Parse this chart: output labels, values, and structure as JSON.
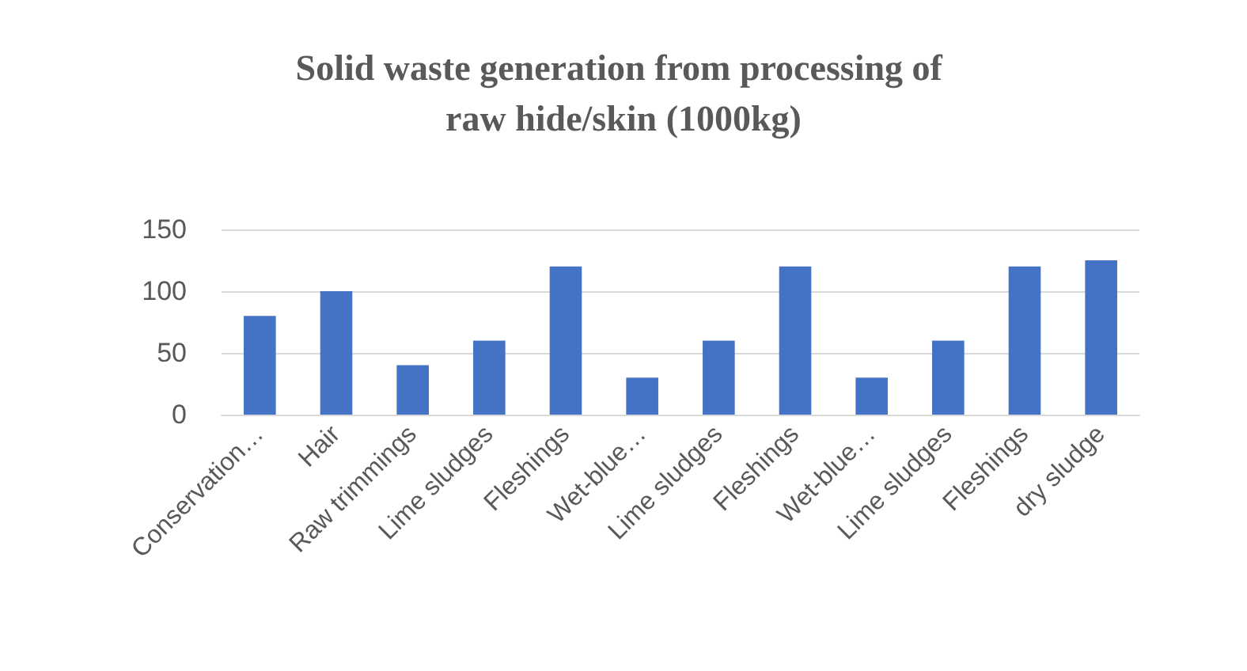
{
  "chart_data": {
    "type": "bar",
    "title": "Solid waste generation from processing of raw hide/skin (1000kg)",
    "categories": [
      "Conservation…",
      "Hair",
      "Raw trimmings",
      "Lime sludges",
      "Fleshings",
      "Wet-blue…",
      "Lime sludges",
      "Fleshings",
      "Wet-blue…",
      "Lime sludges",
      "Fleshings",
      "dry sludge"
    ],
    "values": [
      80,
      100,
      40,
      60,
      120,
      30,
      60,
      120,
      30,
      60,
      120,
      125
    ],
    "color": "#4472c4",
    "ylim": [
      0,
      150
    ],
    "yticks": [
      0,
      50,
      100,
      150
    ],
    "grid": "y"
  }
}
